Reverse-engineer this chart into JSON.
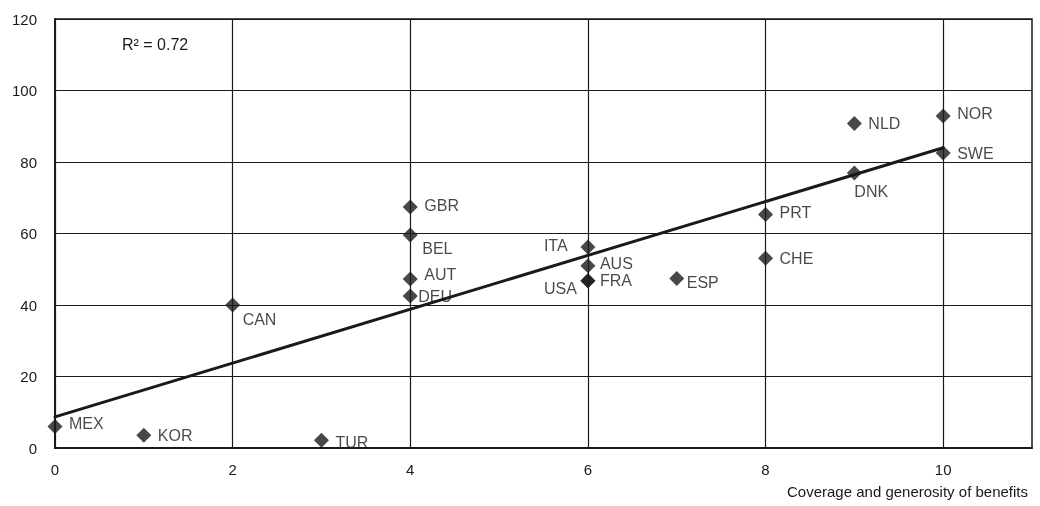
{
  "chart_data": {
    "type": "scatter",
    "xlabel": "Coverage and generosity of benefits",
    "annotations": [
      "R² = 0.72"
    ],
    "xlim": [
      0,
      11
    ],
    "xticks": [
      0,
      2,
      4,
      6,
      8,
      10
    ],
    "ylim": [
      0,
      120
    ],
    "yticks": [
      0,
      20,
      40,
      60,
      80,
      100,
      120
    ],
    "grid": true,
    "marker": "diamond",
    "series": [
      {
        "color": "#1a1a1a",
        "x": [
          0,
          1,
          3,
          2,
          4,
          4,
          4,
          4,
          6,
          6,
          6,
          6,
          7,
          8,
          8,
          9,
          9,
          10,
          10
        ],
        "values": [
          6,
          3.6,
          2.2,
          40,
          67.4,
          59.6,
          47.3,
          42.5,
          56.2,
          51,
          46.8,
          46.8,
          47.4,
          53.1,
          65.3,
          76.9,
          90.8,
          92.9,
          82.5
        ],
        "value_labels": [
          "MEX",
          "KOR",
          "TUR",
          "CAN",
          "GBR",
          "BEL",
          "AUT",
          "DEU",
          "ITA",
          "AUS",
          "FRA",
          "USA",
          "ESP",
          "CHE",
          "PRT",
          "DNK",
          "NLD",
          "NOR",
          "SWE"
        ]
      },
      {
        "type": "line",
        "color": "#1a1a1a",
        "marker": "none",
        "x": [
          0,
          10
        ],
        "values": [
          8.7,
          84
        ]
      }
    ]
  }
}
